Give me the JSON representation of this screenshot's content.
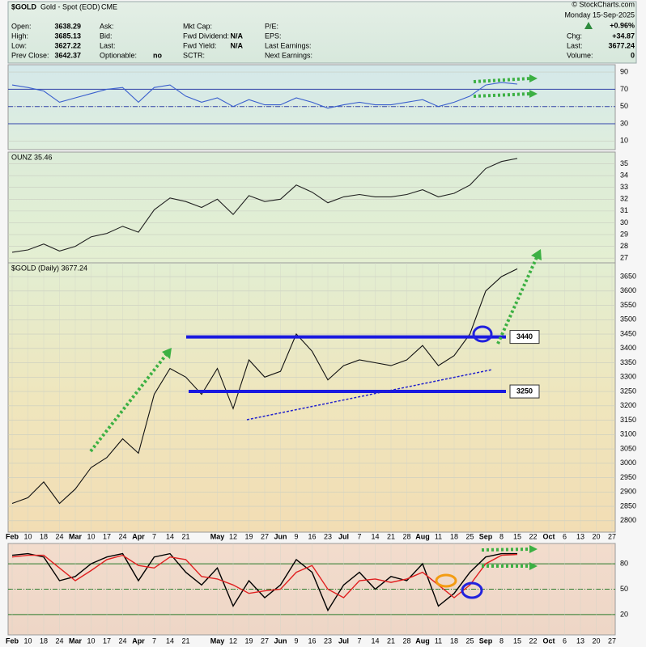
{
  "quote": {
    "symbol": "$GOLD",
    "name": "Gold - Spot (EOD)",
    "exchange": "CME",
    "copyright": "© StockCharts.com",
    "date": "Monday 15-Sep-2025",
    "columns": [
      [
        {
          "label": "Open:",
          "value": "3638.29"
        },
        {
          "label": "High:",
          "value": "3685.13"
        },
        {
          "label": "Low:",
          "value": "3627.22"
        },
        {
          "label": "Prev Close:",
          "value": "3642.37"
        }
      ],
      [
        {
          "label": "Ask:"
        },
        {
          "label": "Bid:"
        },
        {
          "label": "Last:"
        },
        {
          "label": "Optionable:",
          "value": "no"
        }
      ],
      [
        {
          "label": "Mkt Cap:"
        },
        {
          "label": "Fwd Dividend:",
          "value": "N/A"
        },
        {
          "label": "Fwd Yield:",
          "value": "N/A"
        },
        {
          "label": "SCTR:"
        }
      ],
      [
        {
          "label": "P/E:"
        },
        {
          "label": "EPS:"
        },
        {
          "label": "Last Earnings:"
        },
        {
          "label": "Next Earnings:"
        }
      ]
    ],
    "change_pct": "+0.96%",
    "right": [
      {
        "label": "Chg:",
        "value": "+34.87"
      },
      {
        "label": "Last:",
        "value": "3677.24"
      },
      {
        "label": "Volume:",
        "value": "0"
      }
    ]
  },
  "chart_data": [
    {
      "type": "line",
      "color": "#3a5fcd",
      "ylim": [
        0,
        98.5
      ],
      "yticks": [
        10,
        30,
        50,
        70,
        90
      ],
      "hlines": [
        70,
        50,
        30
      ],
      "values": [
        75,
        72,
        68,
        55,
        60,
        65,
        70,
        72,
        55,
        72,
        75,
        62,
        55,
        60,
        50,
        58,
        52,
        52,
        60,
        55,
        48,
        52,
        55,
        52,
        52,
        55,
        58,
        50,
        55,
        62,
        75,
        78,
        76,
        null,
        null,
        null,
        null,
        null,
        null
      ]
    },
    {
      "type": "line",
      "title": "OUNZ 35.46",
      "color": "#222222",
      "ylim": [
        26.6,
        36
      ],
      "yticks": [
        27,
        28,
        29,
        30,
        31,
        32,
        33,
        34,
        35
      ],
      "values": [
        27.5,
        27.7,
        28.2,
        27.6,
        28.0,
        28.8,
        29.1,
        29.7,
        29.2,
        31.1,
        32.1,
        31.8,
        31.3,
        32.0,
        30.7,
        32.3,
        31.8,
        32.0,
        33.2,
        32.6,
        31.7,
        32.2,
        32.4,
        32.2,
        32.2,
        32.4,
        32.8,
        32.2,
        32.5,
        33.2,
        34.6,
        35.2,
        35.46,
        null,
        null,
        null,
        null,
        null,
        null
      ]
    },
    {
      "type": "line",
      "title": "$GOLD (Daily) 3677.24",
      "color": "#111111",
      "ylim": [
        2760,
        3698
      ],
      "yticks": [
        2800,
        2850,
        2900,
        2950,
        3000,
        3050,
        3100,
        3150,
        3200,
        3250,
        3300,
        3350,
        3400,
        3450,
        3500,
        3550,
        3600,
        3650
      ],
      "levels": [
        3440,
        3250
      ],
      "categories": [
        "Feb",
        "10",
        "18",
        "24",
        "Mar",
        "10",
        "17",
        "24",
        "Apr",
        "7",
        "14",
        "21",
        null,
        "May",
        "12",
        "19",
        "27",
        "Jun",
        "9",
        "16",
        "23",
        "Jul",
        "7",
        "14",
        "21",
        "28",
        "Aug",
        "11",
        "18",
        "25",
        "Sep",
        "8",
        "15",
        "22",
        "Oct",
        "6",
        "13",
        "20",
        "27"
      ],
      "values": [
        2860,
        2880,
        2935,
        2860,
        2910,
        2985,
        3020,
        3085,
        3035,
        3240,
        3330,
        3300,
        3240,
        3330,
        3190,
        3360,
        3300,
        3320,
        3450,
        3390,
        3290,
        3340,
        3360,
        3350,
        3340,
        3360,
        3410,
        3340,
        3375,
        3450,
        3600,
        3650,
        3677.24,
        null,
        null,
        null,
        null,
        null,
        null
      ]
    },
    {
      "type": "line",
      "ylim": [
        -4,
        104
      ],
      "yticks": [
        20,
        50,
        80
      ],
      "hlines": [
        80,
        50,
        20
      ],
      "categories": [
        "Feb",
        "10",
        "18",
        "24",
        "Mar",
        "10",
        "17",
        "24",
        "Apr",
        "7",
        "14",
        "21",
        null,
        "May",
        "12",
        "19",
        "27",
        "Jun",
        "9",
        "16",
        "23",
        "Jul",
        "7",
        "14",
        "21",
        "28",
        "Aug",
        "11",
        "18",
        "25",
        "Sep",
        "8",
        "15",
        "22",
        "Oct",
        "6",
        "13",
        "20",
        "27"
      ],
      "series": [
        {
          "color": "#000000",
          "values": [
            90,
            92,
            88,
            60,
            65,
            80,
            88,
            92,
            60,
            88,
            92,
            70,
            55,
            75,
            30,
            60,
            40,
            55,
            85,
            70,
            25,
            55,
            70,
            50,
            65,
            60,
            80,
            30,
            45,
            70,
            88,
            92,
            92,
            null,
            null,
            null,
            null,
            null,
            null
          ]
        },
        {
          "color": "#e02020",
          "values": [
            88,
            90,
            90,
            75,
            60,
            72,
            85,
            90,
            78,
            75,
            88,
            85,
            65,
            62,
            55,
            45,
            48,
            50,
            70,
            78,
            50,
            40,
            60,
            62,
            58,
            62,
            70,
            55,
            40,
            55,
            80,
            90,
            91,
            null,
            null,
            null,
            null,
            null,
            null
          ]
        }
      ]
    }
  ]
}
